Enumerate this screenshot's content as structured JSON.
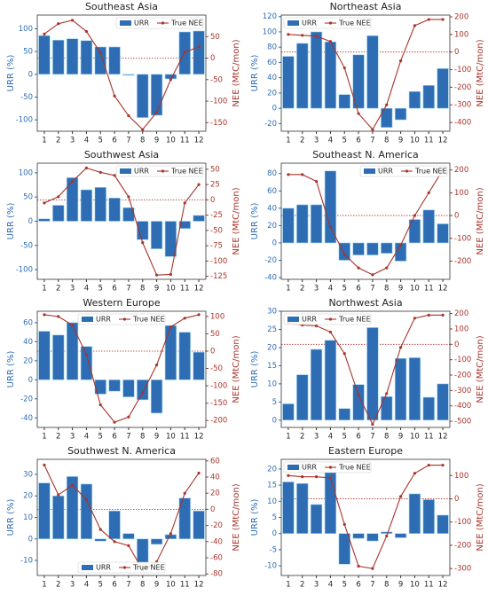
{
  "chart_data": [
    {
      "type": "combo",
      "title": "Southeast Asia",
      "ylabel": "URR (%)",
      "y2label": "NEE (MtC/mon)",
      "legend": "upper right",
      "categories": [
        1,
        2,
        3,
        4,
        5,
        6,
        7,
        8,
        9,
        10,
        11,
        12
      ],
      "ylim": [
        -125,
        130
      ],
      "yticks": [
        -100,
        -50,
        0,
        50,
        100
      ],
      "y2lim": [
        -170,
        100
      ],
      "y2ticks": [
        -150,
        -100,
        -50,
        0,
        50
      ],
      "series": [
        {
          "name": "URR",
          "type": "bar",
          "color": "#2e6db4",
          "values": [
            85,
            75,
            78,
            74,
            60,
            60,
            -2,
            -95,
            -90,
            -10,
            93,
            95
          ]
        },
        {
          "name": "True NEE",
          "type": "line",
          "axis": "y2",
          "color": "#a8342a",
          "values": [
            56,
            80,
            88,
            62,
            12,
            -88,
            -134,
            -166,
            -126,
            -50,
            14,
            26
          ]
        }
      ]
    },
    {
      "type": "combo",
      "title": "Northeast Asia",
      "ylabel": "URR (%)",
      "y2label": "NEE (MtC/mon)",
      "legend": "upper left",
      "categories": [
        1,
        2,
        3,
        4,
        5,
        6,
        7,
        8,
        9,
        10,
        11,
        12
      ],
      "ylim": [
        -30,
        122
      ],
      "yticks": [
        -20,
        0,
        20,
        40,
        60,
        80,
        100,
        120
      ],
      "y2lim": [
        -450,
        210
      ],
      "y2ticks": [
        -400,
        -300,
        -200,
        -100,
        0,
        100,
        200
      ],
      "series": [
        {
          "name": "URR",
          "type": "bar",
          "color": "#2e6db4",
          "values": [
            68,
            85,
            100,
            87,
            18,
            70,
            95,
            -25,
            -15,
            22,
            30,
            52
          ]
        },
        {
          "name": "True NEE",
          "type": "line",
          "axis": "y2",
          "color": "#a8342a",
          "values": [
            100,
            95,
            90,
            60,
            -90,
            -350,
            -440,
            -300,
            -50,
            150,
            185,
            185
          ]
        }
      ]
    },
    {
      "type": "combo",
      "title": "Southwest Asia",
      "ylabel": "URR (%)",
      "y2label": "NEE (MtC/mon)",
      "legend": "upper right",
      "categories": [
        1,
        2,
        3,
        4,
        5,
        6,
        7,
        8,
        9,
        10,
        11,
        12
      ],
      "ylim": [
        -120,
        120
      ],
      "yticks": [
        -100,
        -50,
        0,
        50,
        100
      ],
      "y2lim": [
        -130,
        60
      ],
      "y2ticks": [
        -125,
        -100,
        -75,
        -50,
        -25,
        0,
        25,
        50
      ],
      "series": [
        {
          "name": "URR",
          "type": "bar",
          "color": "#2e6db4",
          "values": [
            5,
            33,
            90,
            65,
            70,
            48,
            28,
            -38,
            -57,
            -73,
            -15,
            12
          ]
        },
        {
          "name": "True NEE",
          "type": "line",
          "axis": "y2",
          "color": "#a8342a",
          "values": [
            -5,
            5,
            30,
            52,
            45,
            40,
            5,
            -70,
            -123,
            -122,
            -5,
            25
          ]
        }
      ]
    },
    {
      "type": "combo",
      "title": "Southeast N. America",
      "ylabel": "URR (%)",
      "y2label": "NEE (MtC/mon)",
      "legend": "upper right",
      "categories": [
        1,
        2,
        3,
        4,
        5,
        6,
        7,
        8,
        9,
        10,
        11,
        12
      ],
      "ylim": [
        -42,
        92
      ],
      "yticks": [
        -40,
        -20,
        0,
        20,
        40,
        60,
        80
      ],
      "y2lim": [
        -280,
        230
      ],
      "y2ticks": [
        -200,
        -100,
        0,
        100,
        200
      ],
      "series": [
        {
          "name": "URR",
          "type": "bar",
          "color": "#2e6db4",
          "values": [
            40,
            44,
            44,
            83,
            -20,
            -14,
            -14,
            -12,
            -21,
            27,
            38,
            22
          ]
        },
        {
          "name": "True NEE",
          "type": "line",
          "axis": "y2",
          "color": "#a8342a",
          "values": [
            180,
            180,
            150,
            -50,
            -170,
            -230,
            -260,
            -230,
            -130,
            0,
            100,
            200
          ]
        }
      ]
    },
    {
      "type": "combo",
      "title": "Western Europe",
      "ylabel": "URR (%)",
      "y2label": "NEE (MtC/mon)",
      "legend": "upper center",
      "categories": [
        1,
        2,
        3,
        4,
        5,
        6,
        7,
        8,
        9,
        10,
        11,
        12
      ],
      "ylim": [
        -50,
        72
      ],
      "yticks": [
        -40,
        -20,
        0,
        20,
        40,
        60
      ],
      "y2lim": [
        -220,
        115
      ],
      "y2ticks": [
        -200,
        -150,
        -100,
        -50,
        0,
        50,
        100
      ],
      "series": [
        {
          "name": "URR",
          "type": "bar",
          "color": "#2e6db4",
          "values": [
            51,
            47,
            60,
            35,
            -15,
            -12,
            -18,
            -21,
            -35,
            57,
            50,
            29
          ]
        },
        {
          "name": "True NEE",
          "type": "line",
          "axis": "y2",
          "color": "#a8342a",
          "values": [
            105,
            100,
            75,
            -10,
            -155,
            -205,
            -190,
            -120,
            -40,
            70,
            95,
            105
          ]
        }
      ]
    },
    {
      "type": "combo",
      "title": "Northwest Asia",
      "ylabel": "URR (%)",
      "y2label": "NEE (MtC/mon)",
      "legend": "upper left",
      "categories": [
        1,
        2,
        3,
        4,
        5,
        6,
        7,
        8,
        9,
        10,
        11,
        12
      ],
      "ylim": [
        -2,
        30
      ],
      "yticks": [
        0,
        5,
        10,
        15,
        20,
        25,
        30
      ],
      "y2lim": [
        -540,
        215
      ],
      "y2ticks": [
        -500,
        -400,
        -300,
        -200,
        -100,
        0,
        100,
        200
      ],
      "series": [
        {
          "name": "URR",
          "type": "bar",
          "color": "#2e6db4",
          "values": [
            4.5,
            12.5,
            19.5,
            22,
            3.2,
            9.8,
            25.5,
            6.5,
            17,
            17.2,
            6.3,
            10
          ]
        },
        {
          "name": "True NEE",
          "type": "line",
          "axis": "y2",
          "color": "#a8342a",
          "values": [
            140,
            125,
            120,
            80,
            -60,
            -330,
            -520,
            -320,
            -20,
            170,
            190,
            190
          ]
        }
      ]
    },
    {
      "type": "combo",
      "title": "Southwest N. America",
      "ylabel": "URR (%)",
      "y2label": "NEE (MtC/mon)",
      "legend": "lower center",
      "categories": [
        1,
        2,
        3,
        4,
        5,
        6,
        7,
        8,
        9,
        10,
        11,
        12
      ],
      "ylim": [
        -17,
        37
      ],
      "yticks": [
        -10,
        0,
        10,
        20,
        30
      ],
      "y2lim": [
        -82,
        62
      ],
      "y2ticks": [
        -80,
        -60,
        -40,
        -20,
        0,
        20,
        40,
        60
      ],
      "series": [
        {
          "name": "URR",
          "type": "bar",
          "color": "#2e6db4",
          "values": [
            26,
            20,
            29,
            25.5,
            -1,
            13,
            2.5,
            -11,
            -2.5,
            2,
            19,
            13
          ]
        },
        {
          "name": "True NEE",
          "type": "line",
          "axis": "y2",
          "color": "#a8342a",
          "values": [
            55,
            18,
            30,
            12,
            -25,
            -40,
            -45,
            -75,
            -65,
            -30,
            20,
            45
          ]
        }
      ]
    },
    {
      "type": "combo",
      "title": "Eastern Europe",
      "ylabel": "URR (%)",
      "y2label": "NEE (MtC/mon)",
      "legend": "upper left",
      "categories": [
        1,
        2,
        3,
        4,
        5,
        6,
        7,
        8,
        9,
        10,
        11,
        12
      ],
      "ylim": [
        -13,
        23
      ],
      "yticks": [
        -10,
        -5,
        0,
        5,
        10,
        15,
        20
      ],
      "y2lim": [
        -330,
        170
      ],
      "y2ticks": [
        -300,
        -200,
        -100,
        0,
        100
      ],
      "series": [
        {
          "name": "URR",
          "type": "bar",
          "color": "#2e6db4",
          "values": [
            16,
            15.5,
            9,
            19,
            -9.5,
            -1.5,
            -2.3,
            0.5,
            -1.3,
            12.3,
            10.5,
            5.7
          ]
        },
        {
          "name": "True NEE",
          "type": "line",
          "axis": "y2",
          "color": "#a8342a",
          "values": [
            100,
            95,
            95,
            90,
            -110,
            -290,
            -300,
            -160,
            10,
            110,
            145,
            145
          ]
        }
      ]
    }
  ]
}
